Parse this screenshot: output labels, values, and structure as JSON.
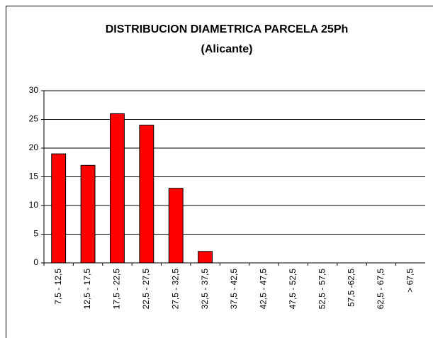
{
  "chart_data": {
    "type": "bar",
    "title": "DISTRIBUCION DIAMETRICA PARCELA 25Ph",
    "subtitle": "(Alicante)",
    "categories": [
      "7,5 - 12,5",
      "12,5 - 17,5",
      "17,5 - 22,5",
      "22,5 - 27,5",
      "27,5 - 32,5",
      "32,5 - 37,5",
      "37,5 - 42,5",
      "42,5 - 47,5",
      "47,5 - 52,5",
      "52,5 - 57,5",
      "57,5 -62,5",
      "62,5 - 67,5",
      "> 67,5"
    ],
    "values": [
      19,
      17,
      26,
      24,
      13,
      2,
      0,
      0,
      0,
      0,
      0,
      0,
      0
    ],
    "color": "#ff0000",
    "ylim": [
      0,
      30
    ],
    "yticks": [
      0,
      5,
      10,
      15,
      20,
      25,
      30
    ],
    "grid": true
  }
}
